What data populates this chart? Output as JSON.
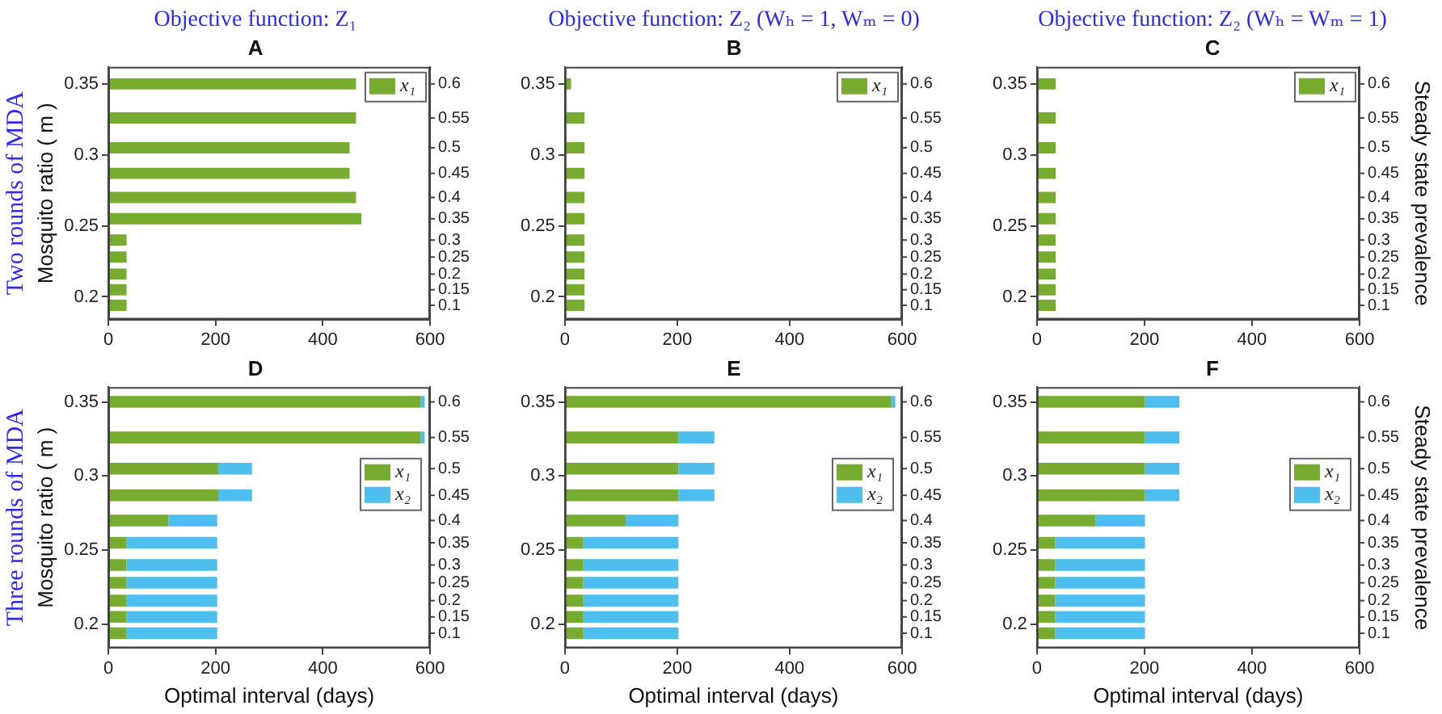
{
  "chart_data": [
    {
      "type": "bar",
      "orientation": "horizontal",
      "stacked": true,
      "title": "A",
      "subtitle": "Objective function: Z₁",
      "ylabel": "Mosquito ratio ( m )",
      "legend": "top right",
      "annotations": [
        "Two rounds of MDA",
        "0.6",
        "0.55",
        "0.5",
        "0.45",
        "0.4",
        "0.35",
        "0.3",
        "0.25",
        "0.2",
        "0.15",
        "0.1"
      ],
      "x": [
        0.35,
        0.326,
        0.305,
        0.287,
        0.27,
        0.255,
        0.24,
        0.228,
        0.216,
        0.205,
        0.194
      ],
      "series": [
        {
          "name": "x₁",
          "color": "#77ac30",
          "values": [
            462,
            462,
            450,
            450,
            462,
            472,
            34,
            34,
            34,
            34,
            34
          ]
        }
      ],
      "xlim": [
        0,
        600
      ],
      "xticks": [
        0,
        200,
        400,
        600
      ],
      "ylim": [
        0.184,
        0.362
      ],
      "yticks": [
        0.2,
        0.25,
        0.3,
        0.35
      ]
    },
    {
      "type": "bar",
      "orientation": "horizontal",
      "stacked": true,
      "title": "B",
      "subtitle": "Objective function: Z₂ (Wₕ = 1, Wₘ = 0)",
      "legend": "top right",
      "annotations": [
        "0.6",
        "0.55",
        "0.5",
        "0.45",
        "0.4",
        "0.35",
        "0.3",
        "0.25",
        "0.2",
        "0.15",
        "0.1"
      ],
      "x": [
        0.35,
        0.326,
        0.305,
        0.287,
        0.27,
        0.255,
        0.24,
        0.228,
        0.216,
        0.205,
        0.194
      ],
      "series": [
        {
          "name": "x₁",
          "color": "#77ac30",
          "values": [
            11,
            35,
            35,
            35,
            35,
            35,
            35,
            35,
            35,
            35,
            35
          ]
        }
      ],
      "xlim": [
        0,
        600
      ],
      "xticks": [
        0,
        200,
        400,
        600
      ],
      "ylim": [
        0.184,
        0.362
      ],
      "yticks": [
        0.2,
        0.25,
        0.3,
        0.35
      ]
    },
    {
      "type": "bar",
      "orientation": "horizontal",
      "stacked": true,
      "title": "C",
      "subtitle": "Objective function: Z₂ (Wₕ = Wₘ = 1)",
      "y2label": "Steady state prevalence",
      "legend": "top right",
      "annotations": [
        "0.6",
        "0.55",
        "0.5",
        "0.45",
        "0.4",
        "0.35",
        "0.3",
        "0.25",
        "0.2",
        "0.15",
        "0.1"
      ],
      "x": [
        0.35,
        0.326,
        0.305,
        0.287,
        0.27,
        0.255,
        0.24,
        0.228,
        0.216,
        0.205,
        0.194
      ],
      "series": [
        {
          "name": "x₁",
          "color": "#77ac30",
          "values": [
            35,
            35,
            35,
            35,
            35,
            35,
            35,
            35,
            35,
            35,
            35
          ]
        }
      ],
      "xlim": [
        0,
        600
      ],
      "xticks": [
        0,
        200,
        400,
        600
      ],
      "ylim": [
        0.184,
        0.362
      ],
      "yticks": [
        0.2,
        0.25,
        0.3,
        0.35
      ]
    },
    {
      "type": "bar",
      "orientation": "horizontal",
      "stacked": true,
      "title": "D",
      "xlabel": "Optimal interval (days)",
      "ylabel": "Mosquito ratio ( m )",
      "legend": "right",
      "annotations": [
        "Three rounds of MDA",
        "0.6",
        "0.55",
        "0.5",
        "0.45",
        "0.4",
        "0.35",
        "0.3",
        "0.25",
        "0.2",
        "0.15",
        "0.1"
      ],
      "x": [
        0.35,
        0.326,
        0.305,
        0.287,
        0.27,
        0.255,
        0.24,
        0.228,
        0.216,
        0.205,
        0.194
      ],
      "series": [
        {
          "name": "x₁",
          "color": "#77ac30",
          "values": [
            583,
            583,
            205,
            205,
            112,
            34,
            34,
            34,
            34,
            34,
            34
          ]
        },
        {
          "name": "x₂",
          "color": "#4dbeee",
          "values": [
            7,
            7,
            63,
            63,
            91,
            169,
            169,
            169,
            169,
            169,
            169
          ]
        }
      ],
      "xlim": [
        0,
        600
      ],
      "xticks": [
        0,
        200,
        400,
        600
      ],
      "ylim": [
        0.184,
        0.36
      ],
      "yticks": [
        0.2,
        0.25,
        0.3,
        0.35
      ]
    },
    {
      "type": "bar",
      "orientation": "horizontal",
      "stacked": true,
      "title": "E",
      "xlabel": "Optimal interval (days)",
      "legend": "right",
      "annotations": [
        "0.6",
        "0.55",
        "0.5",
        "0.45",
        "0.4",
        "0.35",
        "0.3",
        "0.25",
        "0.2",
        "0.15",
        "0.1"
      ],
      "x": [
        0.35,
        0.326,
        0.305,
        0.287,
        0.27,
        0.255,
        0.24,
        0.228,
        0.216,
        0.205,
        0.194
      ],
      "series": [
        {
          "name": "x₁",
          "color": "#77ac30",
          "values": [
            581,
            202,
            202,
            202,
            108,
            33,
            33,
            33,
            33,
            33,
            33
          ]
        },
        {
          "name": "x₂",
          "color": "#4dbeee",
          "values": [
            7,
            64,
            64,
            64,
            94,
            169,
            169,
            169,
            169,
            169,
            169
          ]
        }
      ],
      "xlim": [
        0,
        600
      ],
      "xticks": [
        0,
        200,
        400,
        600
      ],
      "ylim": [
        0.184,
        0.36
      ],
      "yticks": [
        0.2,
        0.25,
        0.3,
        0.35
      ]
    },
    {
      "type": "bar",
      "orientation": "horizontal",
      "stacked": true,
      "title": "F",
      "xlabel": "Optimal interval (days)",
      "y2label": "Steady state prevalence",
      "legend": "right",
      "annotations": [
        "0.6",
        "0.55",
        "0.5",
        "0.45",
        "0.4",
        "0.35",
        "0.3",
        "0.25",
        "0.2",
        "0.15",
        "0.1"
      ],
      "x": [
        0.35,
        0.326,
        0.305,
        0.287,
        0.27,
        0.255,
        0.24,
        0.228,
        0.216,
        0.205,
        0.194
      ],
      "series": [
        {
          "name": "x₁",
          "color": "#77ac30",
          "values": [
            201,
            201,
            201,
            201,
            109,
            34,
            34,
            34,
            34,
            34,
            34
          ]
        },
        {
          "name": "x₂",
          "color": "#4dbeee",
          "values": [
            64,
            64,
            64,
            64,
            92,
            167,
            167,
            167,
            167,
            167,
            167
          ]
        }
      ],
      "xlim": [
        0,
        600
      ],
      "xticks": [
        0,
        200,
        400,
        600
      ],
      "ylim": [
        0.184,
        0.36
      ],
      "yticks": [
        0.2,
        0.25,
        0.3,
        0.35
      ]
    }
  ]
}
